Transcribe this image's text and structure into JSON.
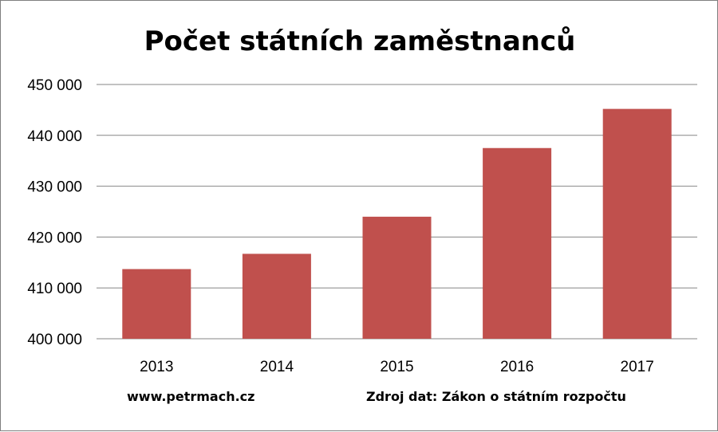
{
  "chart_data": {
    "type": "bar",
    "title": "Počet státních zaměstnanců",
    "categories": [
      "2013",
      "2014",
      "2015",
      "2016",
      "2017"
    ],
    "values": [
      413700,
      416700,
      424000,
      437500,
      445200
    ],
    "ylim": [
      400000,
      450000
    ],
    "yticks": [
      400000,
      410000,
      420000,
      430000,
      440000,
      450000
    ],
    "ytick_labels": [
      "400 000",
      "410 000",
      "420 000",
      "430 000",
      "440 000",
      "450 000"
    ],
    "grid": true,
    "bar_color": "#c0504d"
  },
  "footer": {
    "website": "www.petrmach.cz",
    "source": "Zdroj dat: Zákon o státním rozpočtu"
  }
}
